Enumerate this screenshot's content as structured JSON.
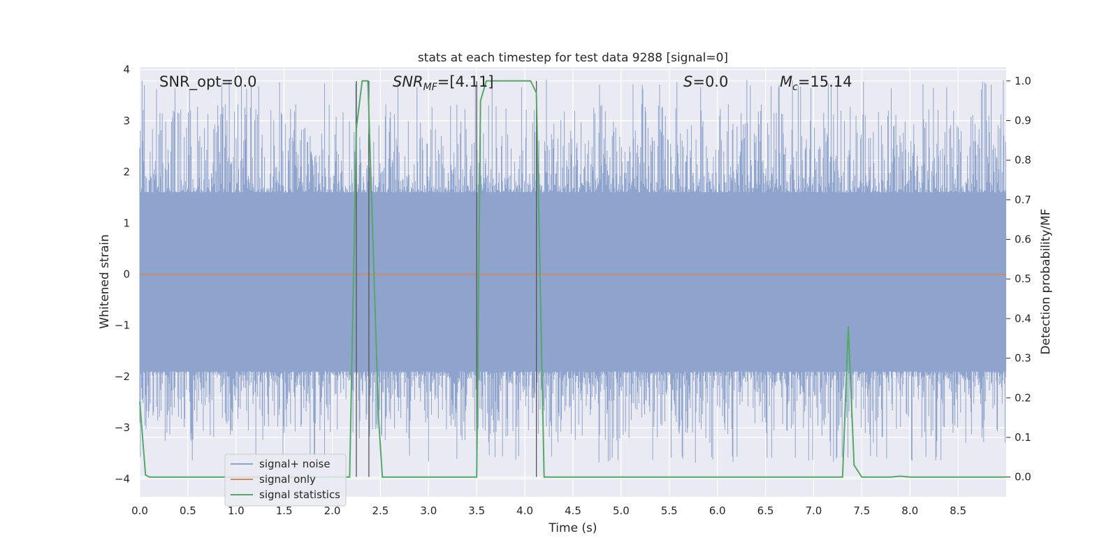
{
  "chart_data": {
    "type": "line",
    "title": "stats at each timestep for test data 9288 [signal=0]",
    "xlabel": "Time (s)",
    "ylabel": "Whitened strain",
    "y2label": "Detection probability/MF",
    "xlim": [
      0.0,
      9.0
    ],
    "ylim": [
      -4.35,
      4.05
    ],
    "y2lim": [
      -0.05,
      1.035
    ],
    "xticks": [
      "0.0",
      "0.5",
      "1.0",
      "1.5",
      "2.0",
      "2.5",
      "3.0",
      "3.5",
      "4.0",
      "4.5",
      "5.0",
      "5.5",
      "6.0",
      "6.5",
      "7.0",
      "7.5",
      "8.0",
      "8.5"
    ],
    "yticks": [
      "4",
      "3",
      "2",
      "1",
      "0",
      "−1",
      "−2",
      "−3",
      "−4"
    ],
    "y2ticks": [
      "1.0",
      "0.9",
      "0.8",
      "0.7",
      "0.6",
      "0.5",
      "0.4",
      "0.3",
      "0.2",
      "0.1",
      "0.0"
    ],
    "grid": true,
    "legend_position": "lower-left",
    "annotations": {
      "snr_opt": "SNR_opt=0.0",
      "snr_mf_main": "SNR",
      "snr_mf_sub": "MF",
      "snr_mf_rest": "=[4.11]",
      "s_main": "S",
      "s_rest": "=0.0",
      "mc_main": "M",
      "mc_sub": "c",
      "mc_rest": "=15.14"
    },
    "vlines": [
      2.25,
      2.38,
      3.5,
      4.12
    ],
    "series": [
      {
        "name": "signal+ noise",
        "color": "#8fa4cc",
        "kind": "noise",
        "envelope_core": [
          -1.9,
          1.6
        ],
        "typical_peaks": [
          -3.6,
          3.7
        ]
      },
      {
        "name": "signal only",
        "color": "#dd8452",
        "x": [
          0.0,
          9.0
        ],
        "y": [
          0.0,
          0.0
        ]
      },
      {
        "name": "signal statistics",
        "color": "#55a868",
        "axis": "right",
        "x": [
          0.0,
          0.06,
          0.1,
          2.18,
          2.25,
          2.31,
          2.37,
          2.48,
          2.52,
          3.5,
          3.54,
          3.6,
          4.06,
          4.12,
          4.2,
          4.25,
          7.3,
          7.36,
          7.42,
          7.5,
          7.8,
          7.9,
          8.0,
          9.0
        ],
        "y": [
          0.19,
          0.005,
          0.0,
          0.0,
          0.88,
          1.0,
          1.0,
          0.15,
          0.0,
          0.0,
          0.95,
          1.0,
          1.0,
          0.97,
          0.0,
          0.0,
          0.0,
          0.38,
          0.03,
          0.0,
          0.0,
          0.002,
          0.0,
          0.0
        ]
      }
    ]
  }
}
